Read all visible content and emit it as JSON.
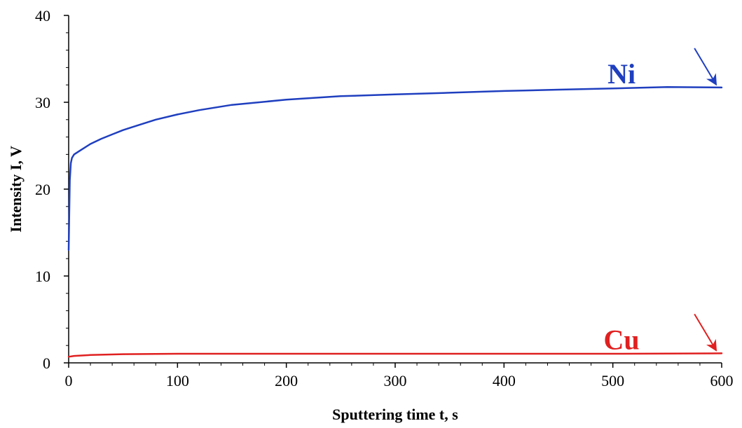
{
  "chart_data": {
    "type": "line",
    "title": "",
    "xlabel": "Sputtering time t, s",
    "ylabel": "Intensity I, V",
    "xlim": [
      0,
      600
    ],
    "ylim": [
      0,
      40
    ],
    "x_ticks": [
      0,
      100,
      200,
      300,
      400,
      500,
      600
    ],
    "y_ticks": [
      0,
      10,
      20,
      30,
      40
    ],
    "grid": false,
    "legend": "none",
    "series": [
      {
        "name": "Ni",
        "color": "#1f3fbf",
        "x": [
          0,
          1,
          2,
          3,
          5,
          10,
          20,
          30,
          40,
          50,
          60,
          80,
          100,
          120,
          150,
          200,
          250,
          300,
          350,
          400,
          450,
          500,
          550,
          600
        ],
        "y": [
          13.0,
          21.0,
          23.0,
          23.6,
          24.0,
          24.4,
          25.2,
          25.8,
          26.3,
          26.8,
          27.2,
          28.0,
          28.6,
          29.1,
          29.7,
          30.3,
          30.7,
          30.9,
          31.1,
          31.3,
          31.45,
          31.6,
          31.75,
          31.7
        ]
      },
      {
        "name": "Cu",
        "color": "#e02020",
        "x": [
          0,
          5,
          20,
          50,
          100,
          200,
          300,
          400,
          500,
          600
        ],
        "y": [
          0.7,
          0.8,
          0.9,
          1.0,
          1.05,
          1.05,
          1.05,
          1.05,
          1.05,
          1.1
        ]
      }
    ],
    "annotations": [
      {
        "text": "Ni",
        "series": "Ni",
        "arrow": true
      },
      {
        "text": "Cu",
        "series": "Cu",
        "arrow": true
      }
    ]
  }
}
